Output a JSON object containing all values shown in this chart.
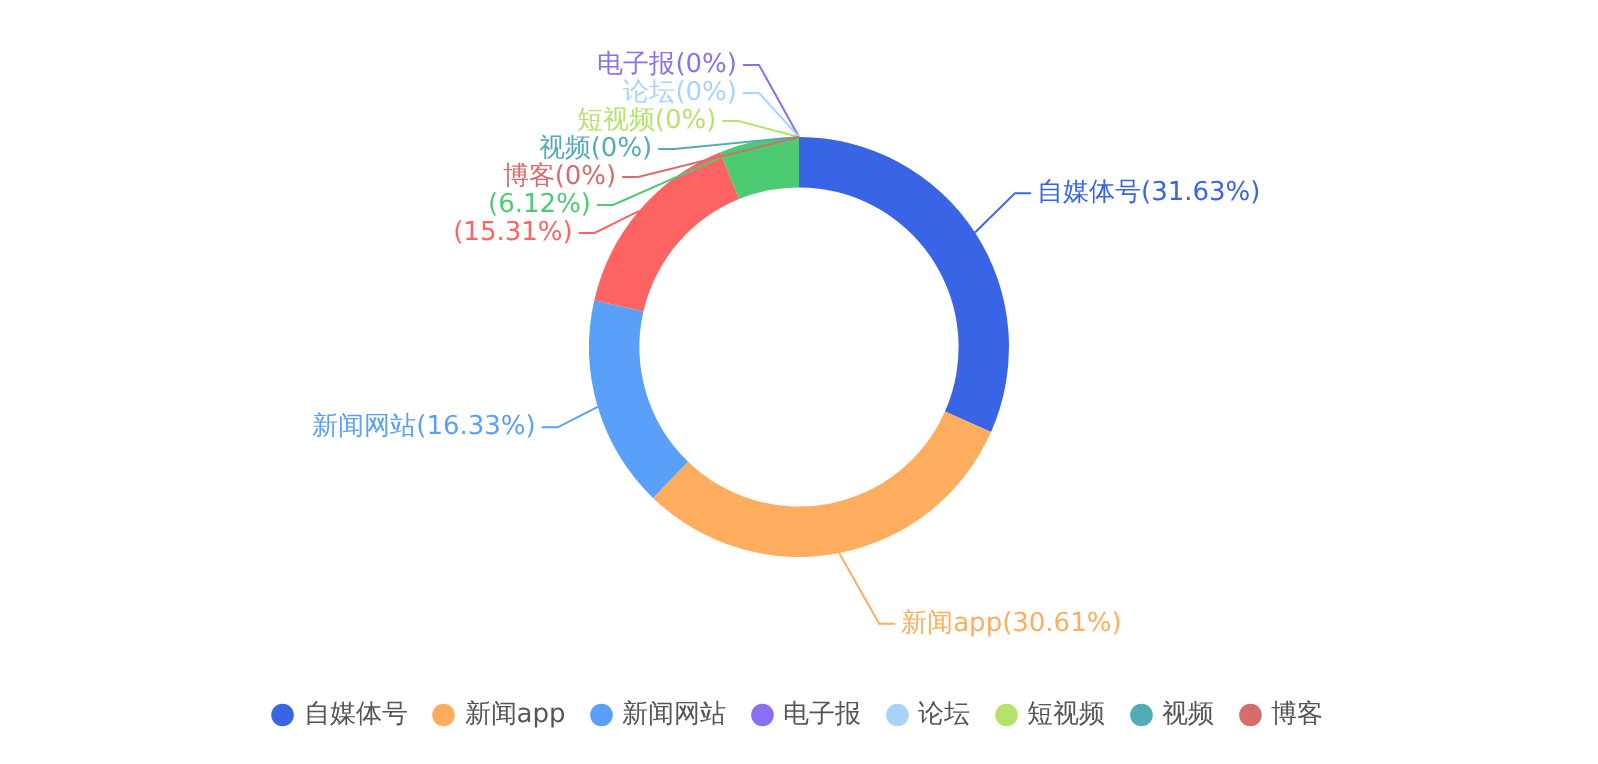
{
  "chart_data": {
    "type": "donut",
    "categories": [
      "自媒体号",
      "新闻app",
      "新闻网站",
      null,
      null,
      "电子报",
      "论坛",
      "短视频",
      "视频",
      "博客"
    ],
    "values": [
      31.63,
      30.61,
      16.33,
      15.31,
      6.12,
      0,
      0,
      0,
      0,
      0
    ],
    "colors": [
      "#3a64e6",
      "#fdad5d",
      "#5a9ff8",
      "#fe6363",
      "#4dcb73",
      "#8a70f0",
      "#a8d3fb",
      "#b6e26c",
      "#52abb5",
      "#d66c6c"
    ],
    "value_labels": [
      "(31.63%)",
      "(30.61%)",
      "(16.33%)",
      "(15.31%)",
      "(6.12%)",
      "(0%)",
      "(0%)",
      "(0%)",
      "(0%)",
      "(0%)"
    ],
    "legend": "bottom"
  }
}
